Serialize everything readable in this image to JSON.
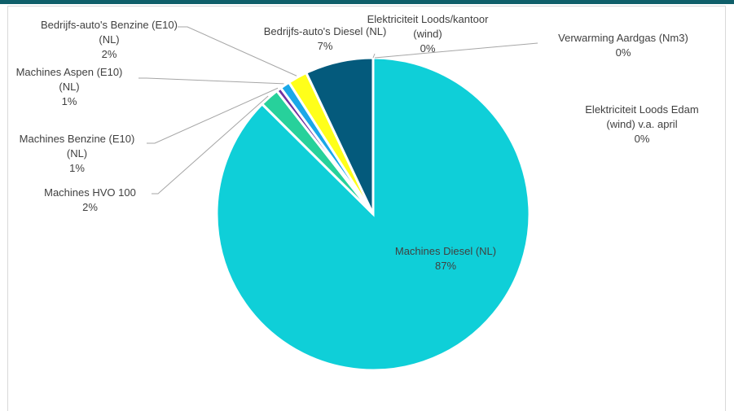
{
  "chart_data": {
    "type": "pie",
    "title": "",
    "legend": "none",
    "slices": [
      {
        "label": "Machines Diesel (NL)",
        "value": 87,
        "value_label": "87%",
        "color": "#0fcfd8"
      },
      {
        "label": "Machines HVO 100",
        "value": 2,
        "value_label": "2%",
        "color": "#27d19b"
      },
      {
        "label": "Machines Benzine (E10) (NL)",
        "value": 0.5,
        "value_label": "1%",
        "color": "#7030a0"
      },
      {
        "label": "Machines Aspen (E10) (NL)",
        "value": 1,
        "value_label": "1%",
        "color": "#1aa8e8"
      },
      {
        "label": "Bedrijfs-auto's Benzine (E10) (NL)",
        "value": 2,
        "value_label": "2%",
        "color": "#ffff1a"
      },
      {
        "label": "Bedrijfs-auto's Diesel (NL)",
        "value": 7,
        "value_label": "7%",
        "color": "#045a7c"
      },
      {
        "label": "Elektriciteit Loods/kantoor (wind)",
        "value": 0,
        "value_label": "0%",
        "color": "#a5a5a5"
      },
      {
        "label": "Verwarming Aardgas (Nm3)",
        "value": 0,
        "value_label": "0%",
        "color": "#5b9bd5"
      },
      {
        "label": "Elektriciteit Loods Edam (wind) v.a. april",
        "value": 0,
        "value_label": "0%",
        "color": "#70ad47"
      }
    ]
  }
}
